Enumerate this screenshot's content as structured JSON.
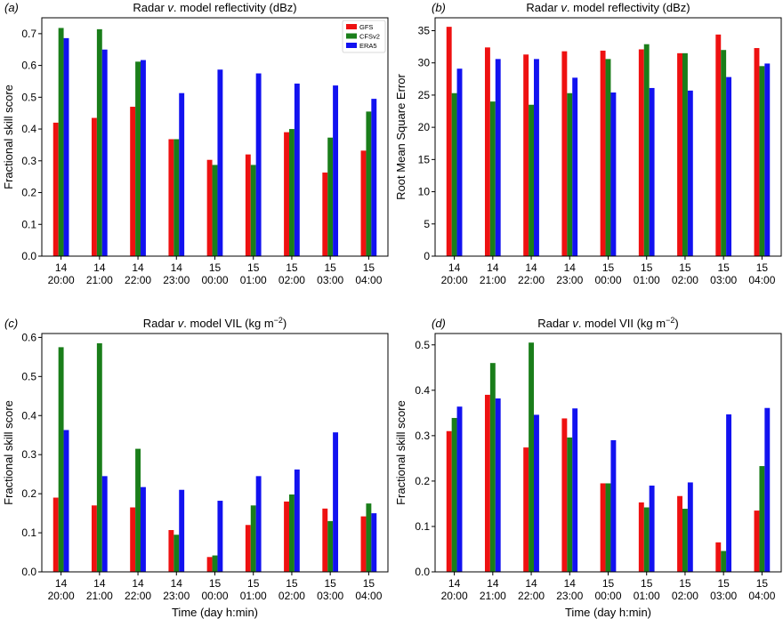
{
  "chart_data": [
    {
      "panel": "(a)",
      "type": "bar",
      "title": "Radar v. model reflectivity (dBz)",
      "title_parts": {
        "pre": "Radar ",
        "italic": "v",
        "post": ". model reflectivity (dBz)"
      },
      "ylabel": "Fractional skill score",
      "xlabel": "",
      "ylim": [
        0,
        0.75
      ],
      "yticks": [
        "0.0",
        "0.1",
        "0.2",
        "0.3",
        "0.4",
        "0.5",
        "0.6",
        "0.7"
      ],
      "categories": [
        [
          "14",
          "20:00"
        ],
        [
          "14",
          "21:00"
        ],
        [
          "14",
          "22:00"
        ],
        [
          "14",
          "23:00"
        ],
        [
          "15",
          "00:00"
        ],
        [
          "15",
          "01:00"
        ],
        [
          "15",
          "02:00"
        ],
        [
          "15",
          "03:00"
        ],
        [
          "15",
          "04:00"
        ]
      ],
      "series": [
        {
          "name": "GFS",
          "color": "#ee1111",
          "values": [
            0.42,
            0.435,
            0.47,
            0.368,
            0.303,
            0.32,
            0.39,
            0.263,
            0.332
          ]
        },
        {
          "name": "CFSv2",
          "color": "#1a7e1a",
          "values": [
            0.718,
            0.714,
            0.612,
            0.368,
            0.287,
            0.287,
            0.4,
            0.373,
            0.455
          ]
        },
        {
          "name": "ERA5",
          "color": "#1212f0",
          "values": [
            0.686,
            0.65,
            0.617,
            0.513,
            0.587,
            0.575,
            0.543,
            0.537,
            0.495
          ]
        }
      ],
      "legend": {
        "location": "top-right",
        "entries": [
          "GFS",
          "CFSv2",
          "ERA5"
        ]
      }
    },
    {
      "panel": "(b)",
      "type": "bar",
      "title": "Radar v. model reflectivity (dBz)",
      "title_parts": {
        "pre": "Radar ",
        "italic": "v",
        "post": ". model reflectivity (dBz)"
      },
      "ylabel": "Root Mean Square Error",
      "xlabel": "",
      "ylim": [
        0,
        37
      ],
      "yticks": [
        "0",
        "5",
        "10",
        "15",
        "20",
        "25",
        "30",
        "35"
      ],
      "categories": [
        [
          "14",
          "20:00"
        ],
        [
          "14",
          "21:00"
        ],
        [
          "14",
          "22:00"
        ],
        [
          "14",
          "23:00"
        ],
        [
          "15",
          "00:00"
        ],
        [
          "15",
          "01:00"
        ],
        [
          "15",
          "02:00"
        ],
        [
          "15",
          "03:00"
        ],
        [
          "15",
          "04:00"
        ]
      ],
      "series": [
        {
          "name": "GFS",
          "color": "#ee1111",
          "values": [
            35.6,
            32.4,
            31.3,
            31.8,
            31.9,
            32.1,
            31.5,
            34.4,
            32.3
          ]
        },
        {
          "name": "CFSv2",
          "color": "#1a7e1a",
          "values": [
            25.3,
            24.0,
            23.5,
            25.3,
            30.6,
            32.9,
            31.5,
            32.0,
            29.5
          ]
        },
        {
          "name": "ERA5",
          "color": "#1212f0",
          "values": [
            29.1,
            30.6,
            30.6,
            27.7,
            25.4,
            26.1,
            25.7,
            27.8,
            29.9
          ]
        }
      ]
    },
    {
      "panel": "(c)",
      "type": "bar",
      "title": "Radar v. model VIL (kg m−2)",
      "title_parts": {
        "pre": "Radar ",
        "italic": "v",
        "post": ". model VIL (kg m",
        "sup": "−2",
        "end": ")"
      },
      "ylabel": "Fractional skill score",
      "xlabel": "Time (day h:min)",
      "ylim": [
        0,
        0.61
      ],
      "yticks": [
        "0.0",
        "0.1",
        "0.2",
        "0.3",
        "0.4",
        "0.5",
        "0.6"
      ],
      "categories": [
        [
          "14",
          "20:00"
        ],
        [
          "14",
          "21:00"
        ],
        [
          "14",
          "22:00"
        ],
        [
          "14",
          "23:00"
        ],
        [
          "15",
          "00:00"
        ],
        [
          "15",
          "01:00"
        ],
        [
          "15",
          "02:00"
        ],
        [
          "15",
          "03:00"
        ],
        [
          "15",
          "04:00"
        ]
      ],
      "series": [
        {
          "name": "GFS",
          "color": "#ee1111",
          "values": [
            0.19,
            0.17,
            0.165,
            0.107,
            0.038,
            0.12,
            0.18,
            0.162,
            0.142
          ]
        },
        {
          "name": "CFSv2",
          "color": "#1a7e1a",
          "values": [
            0.575,
            0.585,
            0.315,
            0.095,
            0.042,
            0.17,
            0.198,
            0.13,
            0.175
          ]
        },
        {
          "name": "ERA5",
          "color": "#1212f0",
          "values": [
            0.363,
            0.245,
            0.217,
            0.21,
            0.182,
            0.245,
            0.262,
            0.357,
            0.15
          ]
        }
      ]
    },
    {
      "panel": "(d)",
      "type": "bar",
      "title": "Radar v. model VII (kg m−2)",
      "title_parts": {
        "pre": "Radar ",
        "italic": "v",
        "post": ". model VII (kg m",
        "sup": "−2",
        "end": ")"
      },
      "ylabel": "Fractional skill score",
      "xlabel": "Time (day h:min)",
      "ylim": [
        0,
        0.525
      ],
      "yticks": [
        "0.0",
        "0.1",
        "0.2",
        "0.3",
        "0.4",
        "0.5"
      ],
      "categories": [
        [
          "14",
          "20:00"
        ],
        [
          "14",
          "21:00"
        ],
        [
          "14",
          "22:00"
        ],
        [
          "14",
          "23:00"
        ],
        [
          "15",
          "00:00"
        ],
        [
          "15",
          "01:00"
        ],
        [
          "15",
          "02:00"
        ],
        [
          "15",
          "03:00"
        ],
        [
          "15",
          "04:00"
        ]
      ],
      "series": [
        {
          "name": "GFS",
          "color": "#ee1111",
          "values": [
            0.31,
            0.39,
            0.274,
            0.338,
            0.195,
            0.153,
            0.167,
            0.065,
            0.135
          ]
        },
        {
          "name": "CFSv2",
          "color": "#1a7e1a",
          "values": [
            0.339,
            0.46,
            0.505,
            0.296,
            0.195,
            0.142,
            0.139,
            0.046,
            0.233
          ]
        },
        {
          "name": "ERA5",
          "color": "#1212f0",
          "values": [
            0.364,
            0.382,
            0.346,
            0.36,
            0.29,
            0.19,
            0.197,
            0.347,
            0.361
          ]
        }
      ]
    }
  ]
}
